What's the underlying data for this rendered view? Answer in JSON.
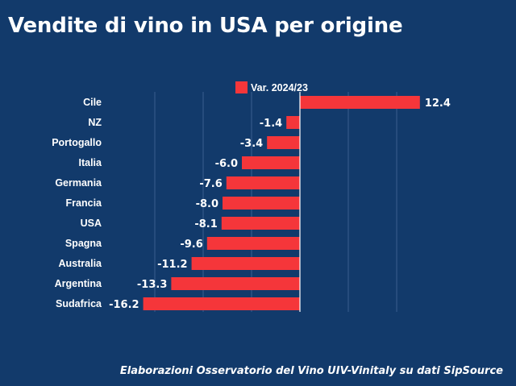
{
  "header": {
    "title": "Vendite di vino in USA per origine"
  },
  "footer": {
    "source": "Elaborazioni Osservatorio del Vino UIV-Vinitaly su dati SipSource"
  },
  "colors": {
    "background": "#123a6b",
    "bar": "#f5363a",
    "text": "#ffffff",
    "grid": "#3a5f8f",
    "axis": "#ffffff"
  },
  "chart_data": {
    "type": "bar",
    "orientation": "horizontal",
    "title": "Vendite di vino in USA per origine",
    "xlabel": "",
    "ylabel": "",
    "categories": [
      "Cile",
      "NZ",
      "Portogallo",
      "Italia",
      "Germania",
      "Francia",
      "USA",
      "Spagna",
      "Australia",
      "Argentina",
      "Sudafrica"
    ],
    "series": [
      {
        "name": "Var. 2024/23",
        "values": [
          12.4,
          -1.4,
          -3.4,
          -6.0,
          -7.6,
          -8.0,
          -8.1,
          -9.6,
          -11.2,
          -13.3,
          -16.2
        ],
        "labels": [
          "12.4",
          "-1.4",
          "-3.4",
          "-6.0",
          "-7.6",
          "-8.0",
          "-8.1",
          "-9.6",
          "-11.2",
          "-13.3",
          "-16.2"
        ]
      }
    ],
    "xlim": [
      -20,
      15
    ],
    "grid": true,
    "legend": "top"
  }
}
